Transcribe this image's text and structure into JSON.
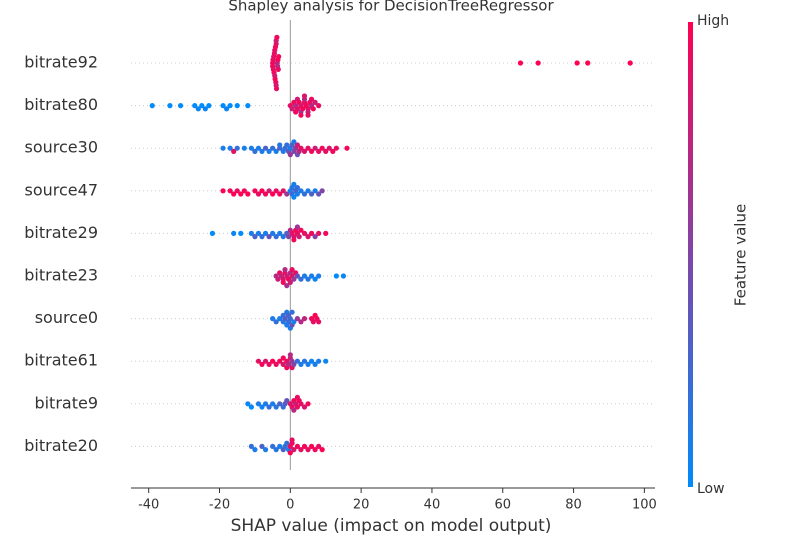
{
  "chart_data": {
    "type": "beeswarm",
    "title": "Shapley analysis for DecisionTreeRegressor",
    "x_label": "SHAP value (impact on model output)",
    "colorbar_label": "Feature value",
    "colorbar_high": "High",
    "colorbar_low": "Low",
    "color_low": "#008bfb",
    "color_high": "#ff0052",
    "xlim": [
      -45,
      103
    ],
    "xticks": [
      -40,
      -20,
      0,
      20,
      40,
      60,
      80,
      100
    ],
    "rows": [
      {
        "label": "bitrate92",
        "values": [
          -5,
          -4.8,
          -4.6,
          -4.4,
          -4.2,
          -4,
          -3.8,
          -3.6,
          -3.4,
          -5,
          -4.5,
          -4,
          -3.5,
          -4.7,
          -4.3,
          -3.9,
          -3.7,
          -4.1,
          -4.9,
          -3.3,
          -4.4,
          -4,
          65,
          70,
          81,
          84,
          96
        ],
        "feature_values": [
          0.95,
          0.9,
          0.95,
          0.8,
          0.95,
          0.9,
          0.95,
          0.7,
          0.9,
          0.95,
          0.9,
          0.8,
          0.95,
          0.9,
          0.95,
          0.9,
          0.7,
          0.95,
          0.9,
          0.95,
          0.9,
          0.8,
          1,
          1,
          1,
          1,
          1
        ]
      },
      {
        "label": "bitrate80",
        "values": [
          -39,
          -34,
          -31,
          -27,
          -26,
          -25,
          -24,
          -23,
          -19,
          -18,
          -17,
          -15,
          -12,
          0,
          0.5,
          1,
          1.5,
          2,
          2.5,
          3,
          3,
          3.5,
          4,
          4,
          4.5,
          5,
          5,
          5.5,
          6,
          6,
          6.5,
          7,
          8,
          3,
          4,
          5,
          2,
          1.5
        ],
        "feature_values": [
          0,
          0,
          0,
          0,
          0.05,
          0,
          0.05,
          0,
          0,
          0.05,
          0,
          0,
          0,
          0.9,
          0.8,
          0.95,
          0.7,
          0.9,
          0.95,
          0.85,
          0.6,
          0.95,
          0.9,
          0.7,
          0.95,
          0.9,
          0.8,
          0.95,
          0.7,
          0.9,
          0.95,
          0.8,
          0.9,
          0.95,
          0.85,
          0.9,
          0.8,
          0.95
        ]
      },
      {
        "label": "source30",
        "values": [
          -19,
          -17,
          -16,
          -15,
          -13,
          -11,
          -10,
          -9,
          -8,
          -7,
          -6,
          -5,
          -4,
          -3,
          -2,
          -1,
          -0.5,
          0,
          0.5,
          1,
          1,
          1.5,
          2,
          2.5,
          3,
          4,
          5,
          6,
          7,
          8,
          9,
          10,
          11,
          12,
          13,
          16,
          -1.5,
          0,
          -3,
          2
        ],
        "feature_values": [
          0.1,
          0.1,
          0.9,
          0.2,
          0.1,
          0.1,
          0.2,
          0.1,
          0.1,
          0.3,
          0.1,
          0.2,
          0.1,
          0.3,
          0.1,
          0.2,
          0.4,
          0.1,
          0.3,
          0.5,
          0.1,
          0.6,
          0.8,
          0.7,
          0.9,
          0.85,
          0.9,
          0.95,
          0.8,
          0.9,
          0.95,
          0.9,
          0.85,
          0.95,
          0.9,
          0.95,
          0.2,
          0.6,
          0.15,
          0.4
        ]
      },
      {
        "label": "source47",
        "values": [
          -19,
          -17,
          -16,
          -15,
          -14,
          -13,
          -12,
          -10,
          -9,
          -8,
          -7,
          -6,
          -5,
          -4,
          -3,
          -2,
          -1,
          0,
          0.5,
          1,
          1.5,
          2,
          3,
          4,
          5,
          6,
          7,
          8,
          9,
          1,
          2,
          0.5
        ],
        "feature_values": [
          1,
          0.95,
          1,
          0.9,
          1,
          0.95,
          1,
          0.95,
          0.9,
          1,
          0.95,
          0.8,
          1,
          0.9,
          0.95,
          0.85,
          0.6,
          0.1,
          0.2,
          0.05,
          0.3,
          0.1,
          0.1,
          0.2,
          0.1,
          0.3,
          0.1,
          0.4,
          0.5,
          0.1,
          0.2,
          0.15
        ]
      },
      {
        "label": "bitrate29",
        "values": [
          -22,
          -16,
          -14,
          -11,
          -10,
          -9,
          -8,
          -7,
          -6,
          -5,
          -4,
          -3,
          -2,
          -1,
          -0.5,
          0,
          0.5,
          1,
          1.5,
          2,
          2.5,
          3,
          4,
          5,
          6,
          7,
          8,
          10,
          1,
          2
        ],
        "feature_values": [
          0,
          0.05,
          0,
          0.1,
          0.3,
          0.1,
          0.2,
          0.1,
          0.4,
          0.1,
          0.2,
          0.1,
          0.15,
          0.3,
          0.5,
          0.7,
          0.9,
          0.85,
          0.95,
          0.9,
          0.8,
          0.95,
          0.9,
          0.85,
          0.95,
          0.5,
          0.9,
          0.95,
          0.95,
          0.6
        ]
      },
      {
        "label": "bitrate23",
        "values": [
          -4,
          -3.5,
          -3,
          -2.5,
          -2,
          -1.5,
          -1,
          -0.5,
          0,
          0.5,
          1,
          1.5,
          2,
          -2,
          -1,
          0,
          3,
          4,
          5,
          6,
          7,
          8,
          13,
          15,
          -1.5,
          0.5
        ],
        "feature_values": [
          0.7,
          0.8,
          0.9,
          0.75,
          0.85,
          0.9,
          0.8,
          0.95,
          0.7,
          0.85,
          0.6,
          0.9,
          0.4,
          0.95,
          0.65,
          0.8,
          0.2,
          0.1,
          0.15,
          0.1,
          0.05,
          0.1,
          0,
          0.05,
          0.7,
          0.9
        ]
      },
      {
        "label": "source0",
        "values": [
          -5,
          -4,
          -3,
          -2,
          -1.5,
          -1,
          -0.5,
          0,
          0.5,
          1,
          -2,
          -1,
          0,
          2,
          3,
          4,
          6,
          6.5,
          7,
          7.5,
          8,
          -0.5,
          0.5
        ],
        "feature_values": [
          0.1,
          0.2,
          0.1,
          0.15,
          0.3,
          0.1,
          0.2,
          0.25,
          0.4,
          0.1,
          0.2,
          0.15,
          0.1,
          0.6,
          0.7,
          0.75,
          0.95,
          0.9,
          1,
          0.95,
          0.9,
          0.3,
          0.2
        ]
      },
      {
        "label": "bitrate61",
        "values": [
          -9,
          -8,
          -7,
          -6,
          -5,
          -4,
          -3,
          -2,
          -1,
          -0.5,
          0,
          0.5,
          1,
          -1,
          0,
          2,
          3,
          4,
          5,
          6,
          7,
          8,
          10,
          -2,
          0.5
        ],
        "feature_values": [
          0.9,
          0.95,
          0.85,
          0.9,
          1,
          0.9,
          0.95,
          0.85,
          0.9,
          0.7,
          0.8,
          0.6,
          0.5,
          0.95,
          0.7,
          0.2,
          0.1,
          0.15,
          0.1,
          0.05,
          0.1,
          0.1,
          0.05,
          0.95,
          0.9
        ]
      },
      {
        "label": "bitrate9",
        "values": [
          -12,
          -11,
          -9,
          -8,
          -7,
          -6,
          -5,
          -4,
          -3,
          -2,
          -1,
          0,
          0.5,
          1,
          1.5,
          2,
          2.5,
          3,
          4,
          5,
          -1.5,
          1,
          2
        ],
        "feature_values": [
          0.05,
          0,
          0.1,
          0.05,
          0.1,
          0.2,
          0.1,
          0.15,
          0.3,
          0.2,
          0.4,
          0.85,
          0.9,
          0.95,
          0.8,
          0.9,
          0.95,
          0.9,
          0.85,
          0.95,
          0.3,
          0.7,
          0.9
        ]
      },
      {
        "label": "bitrate20",
        "values": [
          -11,
          -10,
          -8,
          -7,
          -5,
          -4,
          -3,
          -2,
          -1,
          0,
          0.5,
          1,
          -0.5,
          0,
          2,
          3,
          4,
          5,
          6,
          7,
          8,
          9,
          0.5,
          -1.5
        ],
        "feature_values": [
          0.2,
          0.1,
          0.3,
          0.1,
          0.2,
          0.15,
          0.1,
          0.3,
          0.2,
          0.9,
          0.95,
          0.85,
          0.1,
          1,
          0.95,
          0.9,
          0.95,
          0.9,
          1,
          0.95,
          0.9,
          1,
          0.9,
          0.2
        ]
      }
    ]
  }
}
